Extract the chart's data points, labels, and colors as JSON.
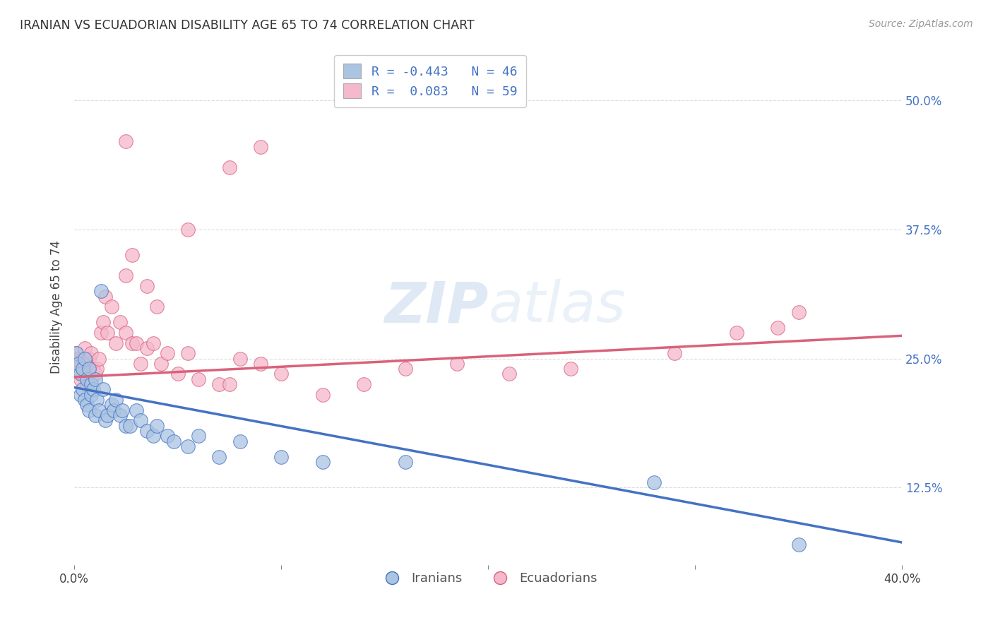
{
  "title": "IRANIAN VS ECUADORIAN DISABILITY AGE 65 TO 74 CORRELATION CHART",
  "source": "Source: ZipAtlas.com",
  "ylabel": "Disability Age 65 to 74",
  "legend_iranian": "R = -0.443   N = 46",
  "legend_ecuadorian": "R =  0.083   N = 59",
  "legend_label1": "Iranians",
  "legend_label2": "Ecuadorians",
  "color_iranian": "#aac4e2",
  "color_ecuadorian": "#f5b8cc",
  "line_color_iranian": "#4472c4",
  "line_color_ecuadorian": "#d9627a",
  "background_color": "#ffffff",
  "grid_color": "#d8d8d8",
  "iranians_x": [
    0.001,
    0.002,
    0.003,
    0.003,
    0.004,
    0.004,
    0.005,
    0.005,
    0.006,
    0.006,
    0.007,
    0.007,
    0.008,
    0.008,
    0.009,
    0.01,
    0.01,
    0.011,
    0.012,
    0.013,
    0.014,
    0.015,
    0.016,
    0.018,
    0.019,
    0.02,
    0.022,
    0.023,
    0.025,
    0.027,
    0.03,
    0.032,
    0.035,
    0.038,
    0.04,
    0.045,
    0.048,
    0.055,
    0.06,
    0.07,
    0.08,
    0.1,
    0.12,
    0.16,
    0.28,
    0.35
  ],
  "iranians_y": [
    0.255,
    0.245,
    0.235,
    0.215,
    0.24,
    0.22,
    0.25,
    0.21,
    0.23,
    0.205,
    0.24,
    0.2,
    0.225,
    0.215,
    0.22,
    0.23,
    0.195,
    0.21,
    0.2,
    0.315,
    0.22,
    0.19,
    0.195,
    0.205,
    0.2,
    0.21,
    0.195,
    0.2,
    0.185,
    0.185,
    0.2,
    0.19,
    0.18,
    0.175,
    0.185,
    0.175,
    0.17,
    0.165,
    0.175,
    0.155,
    0.17,
    0.155,
    0.15,
    0.15,
    0.13,
    0.07
  ],
  "ecuadorians_x": [
    0.001,
    0.002,
    0.003,
    0.003,
    0.004,
    0.004,
    0.005,
    0.005,
    0.006,
    0.006,
    0.007,
    0.007,
    0.008,
    0.008,
    0.009,
    0.01,
    0.011,
    0.012,
    0.013,
    0.014,
    0.015,
    0.016,
    0.018,
    0.02,
    0.022,
    0.025,
    0.028,
    0.03,
    0.032,
    0.035,
    0.038,
    0.04,
    0.042,
    0.045,
    0.05,
    0.055,
    0.06,
    0.07,
    0.075,
    0.08,
    0.09,
    0.1,
    0.12,
    0.14,
    0.16,
    0.185,
    0.21,
    0.24,
    0.29,
    0.32,
    0.35,
    0.028,
    0.025,
    0.035,
    0.055,
    0.025,
    0.075,
    0.09,
    0.34
  ],
  "ecuadorians_y": [
    0.255,
    0.25,
    0.245,
    0.23,
    0.25,
    0.235,
    0.26,
    0.24,
    0.245,
    0.225,
    0.25,
    0.235,
    0.255,
    0.23,
    0.24,
    0.235,
    0.24,
    0.25,
    0.275,
    0.285,
    0.31,
    0.275,
    0.3,
    0.265,
    0.285,
    0.275,
    0.265,
    0.265,
    0.245,
    0.26,
    0.265,
    0.3,
    0.245,
    0.255,
    0.235,
    0.255,
    0.23,
    0.225,
    0.225,
    0.25,
    0.245,
    0.235,
    0.215,
    0.225,
    0.24,
    0.245,
    0.235,
    0.24,
    0.255,
    0.275,
    0.295,
    0.35,
    0.33,
    0.32,
    0.375,
    0.46,
    0.435,
    0.455,
    0.28
  ],
  "xlim": [
    0.0,
    0.4
  ],
  "ylim": [
    0.05,
    0.55
  ],
  "iran_trend_x0": 0.0,
  "iran_trend_y0": 0.222,
  "iran_trend_x1": 0.4,
  "iran_trend_y1": 0.072,
  "ecua_trend_x0": 0.0,
  "ecua_trend_y0": 0.232,
  "ecua_trend_x1": 0.4,
  "ecua_trend_y1": 0.272
}
